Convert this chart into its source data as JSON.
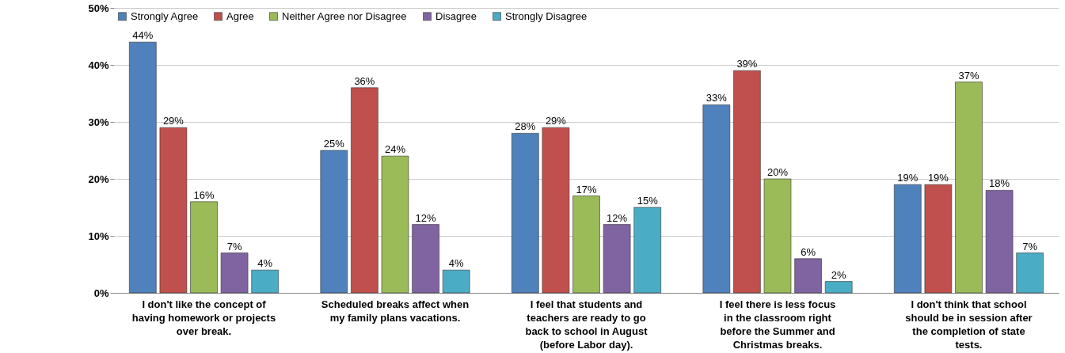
{
  "chart_data": {
    "type": "bar",
    "categories": [
      "I don't like the concept of having homework or projects over break.",
      "Scheduled breaks affect when my family plans vacations.",
      "I feel that students and teachers are ready to go back to school in August (before Labor day).",
      "I feel there is less focus in the classroom right before the Summer and Christmas breaks.",
      "I don't think that school should be in session after the completion of state tests."
    ],
    "series": [
      {
        "name": "Strongly Agree",
        "color": "#4f81bd",
        "values": [
          44,
          25,
          28,
          33,
          19
        ]
      },
      {
        "name": "Agree",
        "color": "#c0504d",
        "values": [
          29,
          36,
          29,
          39,
          19
        ]
      },
      {
        "name": "Neither Agree nor Disagree",
        "color": "#9bbb59",
        "values": [
          16,
          24,
          17,
          20,
          37
        ]
      },
      {
        "name": "Disagree",
        "color": "#8064a2",
        "values": [
          7,
          12,
          12,
          6,
          18
        ]
      },
      {
        "name": "Strongly Disagree",
        "color": "#4bacc6",
        "values": [
          4,
          4,
          15,
          2,
          7
        ]
      }
    ],
    "ylim": [
      0,
      50
    ],
    "yticks": [
      {
        "value": 0,
        "label": "0%"
      },
      {
        "value": 10,
        "label": "10%"
      },
      {
        "value": 20,
        "label": "20%"
      },
      {
        "value": 30,
        "label": "30%"
      },
      {
        "value": 40,
        "label": "40%"
      },
      {
        "value": 50,
        "label": "50%"
      }
    ],
    "value_labels": [
      [
        "44%",
        "25%",
        "28%",
        "33%",
        "19%"
      ],
      [
        "29%",
        "36%",
        "29%",
        "39%",
        "19%"
      ],
      [
        "16%",
        "24%",
        "17%",
        "20%",
        "37%"
      ],
      [
        "7%",
        "12%",
        "12%",
        "6%",
        "18%"
      ],
      [
        "4%",
        "4%",
        "15%",
        "2%",
        "7%"
      ]
    ],
    "grid": "y",
    "legend": "top left"
  }
}
